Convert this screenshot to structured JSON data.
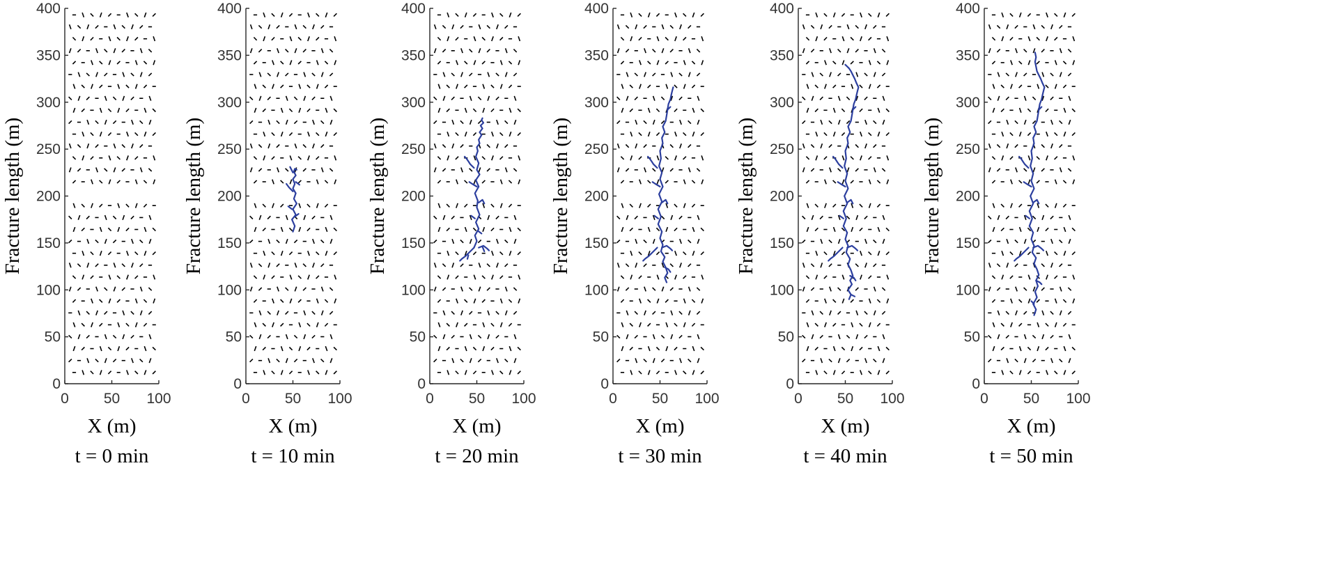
{
  "colors": {
    "natural_fracture": "#000000",
    "hydraulic_fracture": "#2b3e9e",
    "axis": "#262626"
  },
  "chart_data": [
    {
      "type": "scatter",
      "panel_label": "t = 0 min",
      "xlabel": "X (m)",
      "ylabel": "Fracture length (m)",
      "xlim": [
        0,
        100
      ],
      "ylim": [
        0,
        400
      ],
      "xticks": [
        "0",
        "50",
        "100"
      ],
      "yticks": [
        "0",
        "50",
        "100",
        "150",
        "200",
        "250",
        "300",
        "350",
        "400"
      ],
      "natural_fractures": {
        "x_range": [
          10,
          95
        ],
        "y_range": [
          12,
          393
        ],
        "rows": 31,
        "columns": 10,
        "segment_length_m": 3.5,
        "gap_y_range": [
          198,
          205
        ]
      },
      "hydraulic_fracture": []
    },
    {
      "type": "scatter",
      "panel_label": "t = 10 min",
      "xlabel": "X (m)",
      "ylabel": "Fracture length (m)",
      "xlim": [
        0,
        100
      ],
      "ylim": [
        0,
        400
      ],
      "xticks": [
        "0",
        "50",
        "100"
      ],
      "yticks": [
        "0",
        "50",
        "100",
        "150",
        "200",
        "250",
        "300",
        "350",
        "400"
      ],
      "natural_fractures": {
        "x_range": [
          10,
          95
        ],
        "y_range": [
          12,
          393
        ],
        "rows": 31,
        "columns": 10,
        "segment_length_m": 3.5,
        "gap_y_range": [
          198,
          205
        ]
      },
      "hydraulic_fracture": [
        {
          "x": [
            50,
            52,
            49,
            53,
            50,
            54,
            51,
            53,
            50,
            52,
            50,
            53,
            51,
            52,
            54
          ],
          "y": [
            162,
            168,
            175,
            180,
            186,
            192,
            197,
            203,
            208,
            213,
            218,
            222,
            226,
            229,
            228
          ]
        },
        {
          "x": [
            50,
            46,
            43
          ],
          "y": [
            205,
            209,
            213
          ]
        },
        {
          "x": [
            53,
            57
          ],
          "y": [
            215,
            212
          ]
        },
        {
          "x": [
            49,
            45
          ],
          "y": [
            186,
            189
          ]
        },
        {
          "x": [
            52,
            56
          ],
          "y": [
            178,
            181
          ]
        },
        {
          "x": [
            50,
            47
          ],
          "y": [
            225,
            231
          ]
        }
      ]
    },
    {
      "type": "scatter",
      "panel_label": "t = 20 min",
      "xlabel": "X (m)",
      "ylabel": "Fracture length (m)",
      "xlim": [
        0,
        100
      ],
      "ylim": [
        0,
        400
      ],
      "xticks": [
        "0",
        "50",
        "100"
      ],
      "yticks": [
        "0",
        "50",
        "100",
        "150",
        "200",
        "250",
        "300",
        "350",
        "400"
      ],
      "natural_fractures": {
        "x_range": [
          10,
          95
        ],
        "y_range": [
          12,
          393
        ],
        "rows": 31,
        "columns": 10,
        "segment_length_m": 3.5,
        "gap_y_range": [
          198,
          205
        ]
      },
      "hydraulic_fracture": [
        {
          "x": [
            47,
            50,
            48,
            52,
            49,
            53,
            50,
            51,
            48,
            52,
            49,
            53,
            50,
            52,
            49,
            51,
            50,
            53,
            52,
            55,
            53,
            56,
            54,
            57,
            55,
            56
          ],
          "y": [
            145,
            152,
            158,
            165,
            172,
            180,
            188,
            195,
            203,
            210,
            217,
            223,
            228,
            235,
            242,
            248,
            252,
            256,
            260,
            265,
            268,
            272,
            275,
            278,
            281,
            283
          ]
        },
        {
          "x": [
            47,
            42,
            38,
            34,
            32
          ],
          "y": [
            145,
            140,
            136,
            133,
            131
          ]
        },
        {
          "x": [
            52,
            57,
            61,
            63
          ],
          "y": [
            145,
            147,
            144,
            142
          ]
        },
        {
          "x": [
            47,
            43,
            41,
            39,
            37
          ],
          "y": [
            230,
            234,
            237,
            240,
            242
          ]
        },
        {
          "x": [
            50,
            45,
            42
          ],
          "y": [
            210,
            213,
            215
          ]
        },
        {
          "x": [
            52,
            56,
            58
          ],
          "y": [
            193,
            196,
            192
          ]
        },
        {
          "x": [
            48,
            44
          ],
          "y": [
            176,
            179
          ]
        },
        {
          "x": [
            51,
            55
          ],
          "y": [
            163,
            160
          ]
        },
        {
          "x": [
            41,
            40
          ],
          "y": [
            137,
            133
          ]
        },
        {
          "x": [
            56,
            58
          ],
          "y": [
            146,
            141
          ]
        }
      ]
    },
    {
      "type": "scatter",
      "panel_label": "t = 30 min",
      "xlabel": "X (m)",
      "ylabel": "Fracture length (m)",
      "xlim": [
        0,
        100
      ],
      "ylim": [
        0,
        400
      ],
      "xticks": [
        "0",
        "50",
        "100"
      ],
      "yticks": [
        "0",
        "50",
        "100",
        "150",
        "200",
        "250",
        "300",
        "350",
        "400"
      ],
      "natural_fractures": {
        "x_range": [
          10,
          95
        ],
        "y_range": [
          12,
          393
        ],
        "rows": 31,
        "columns": 10,
        "segment_length_m": 3.5,
        "gap_y_range": [
          198,
          205
        ]
      },
      "hydraulic_fracture": [
        {
          "x": [
            57,
            55,
            58,
            56,
            53,
            55,
            51,
            53,
            50,
            52,
            48,
            51,
            48,
            52,
            49,
            53,
            50,
            52,
            49,
            51,
            50,
            53,
            52,
            55,
            53,
            56,
            57,
            58,
            59,
            61,
            62,
            63,
            64
          ],
          "y": [
            108,
            113,
            118,
            124,
            130,
            135,
            141,
            148,
            155,
            162,
            170,
            178,
            186,
            194,
            202,
            210,
            218,
            225,
            232,
            240,
            248,
            256,
            262,
            268,
            274,
            280,
            286,
            292,
            298,
            303,
            308,
            312,
            316
          ]
        },
        {
          "x": [
            47,
            42,
            38,
            34,
            32
          ],
          "y": [
            145,
            140,
            136,
            133,
            131
          ]
        },
        {
          "x": [
            52,
            57,
            61,
            63
          ],
          "y": [
            145,
            147,
            144,
            142
          ]
        },
        {
          "x": [
            47,
            43,
            41,
            39,
            37
          ],
          "y": [
            230,
            234,
            237,
            240,
            242
          ]
        },
        {
          "x": [
            50,
            45,
            42
          ],
          "y": [
            210,
            213,
            215
          ]
        },
        {
          "x": [
            52,
            56,
            58
          ],
          "y": [
            193,
            196,
            192
          ]
        },
        {
          "x": [
            48,
            44
          ],
          "y": [
            176,
            179
          ]
        },
        {
          "x": [
            55,
            59,
            61
          ],
          "y": [
            124,
            122,
            119
          ]
        },
        {
          "x": [
            58,
            61
          ],
          "y": [
            292,
            295
          ]
        }
      ]
    },
    {
      "type": "scatter",
      "panel_label": "t = 40 min",
      "xlabel": "X (m)",
      "ylabel": "Fracture length (m)",
      "xlim": [
        0,
        100
      ],
      "ylim": [
        0,
        400
      ],
      "xticks": [
        "0",
        "50",
        "100"
      ],
      "yticks": [
        "0",
        "50",
        "100",
        "150",
        "200",
        "250",
        "300",
        "350",
        "400"
      ],
      "natural_fractures": {
        "x_range": [
          10,
          95
        ],
        "y_range": [
          12,
          393
        ],
        "rows": 31,
        "columns": 10,
        "segment_length_m": 3.5,
        "gap_y_range": [
          198,
          205
        ]
      },
      "hydraulic_fracture": [
        {
          "x": [
            54,
            56,
            53,
            57,
            55,
            58,
            56,
            53,
            55,
            51,
            53,
            50,
            52,
            48,
            51,
            48,
            52,
            49,
            53,
            50,
            52,
            49,
            51,
            50,
            53,
            52,
            55,
            53,
            56,
            57,
            58,
            59,
            61,
            62,
            63,
            64,
            62,
            60,
            58,
            56,
            54,
            52,
            50
          ],
          "y": [
            90,
            95,
            100,
            106,
            110,
            115,
            121,
            127,
            133,
            140,
            147,
            154,
            161,
            168,
            176,
            184,
            192,
            200,
            208,
            216,
            224,
            232,
            240,
            248,
            256,
            262,
            268,
            274,
            280,
            286,
            292,
            298,
            303,
            308,
            312,
            316,
            320,
            325,
            329,
            333,
            336,
            338,
            340
          ]
        },
        {
          "x": [
            47,
            42,
            38,
            34,
            32
          ],
          "y": [
            145,
            140,
            136,
            133,
            131
          ]
        },
        {
          "x": [
            52,
            57,
            61,
            63
          ],
          "y": [
            145,
            147,
            144,
            142
          ]
        },
        {
          "x": [
            47,
            43,
            41,
            39,
            37
          ],
          "y": [
            230,
            234,
            237,
            240,
            242
          ]
        },
        {
          "x": [
            50,
            45,
            42
          ],
          "y": [
            210,
            213,
            215
          ]
        },
        {
          "x": [
            52,
            56,
            58
          ],
          "y": [
            193,
            196,
            192
          ]
        },
        {
          "x": [
            48,
            44
          ],
          "y": [
            176,
            179
          ]
        },
        {
          "x": [
            55,
            59,
            61
          ],
          "y": [
            115,
            113,
            110
          ]
        },
        {
          "x": [
            58,
            61
          ],
          "y": [
            292,
            295
          ]
        },
        {
          "x": [
            56,
            60
          ],
          "y": [
            95,
            93
          ]
        }
      ]
    },
    {
      "type": "scatter",
      "panel_label": "t = 50 min",
      "xlabel": "X (m)",
      "ylabel": "Fracture length (m)",
      "xlim": [
        0,
        100
      ],
      "ylim": [
        0,
        400
      ],
      "xticks": [
        "0",
        "50",
        "100"
      ],
      "yticks": [
        "0",
        "50",
        "100",
        "150",
        "200",
        "250",
        "300",
        "350",
        "400"
      ],
      "natural_fractures": {
        "x_range": [
          10,
          95
        ],
        "y_range": [
          12,
          393
        ],
        "rows": 31,
        "columns": 10,
        "segment_length_m": 3.5,
        "gap_y_range": [
          198,
          205
        ]
      },
      "hydraulic_fracture": [
        {
          "x": [
            53,
            55,
            52,
            56,
            54,
            57,
            55,
            58,
            56,
            53,
            55,
            51,
            53,
            50,
            52,
            48,
            51,
            48,
            52,
            49,
            53,
            50,
            52,
            49,
            51,
            50,
            53,
            52,
            55,
            53,
            56,
            57,
            58,
            59,
            61,
            62,
            63,
            64,
            62,
            60,
            58,
            56,
            55,
            54,
            55,
            54
          ],
          "y": [
            73,
            79,
            85,
            92,
            98,
            104,
            110,
            116,
            122,
            128,
            134,
            140,
            147,
            154,
            161,
            168,
            176,
            184,
            192,
            200,
            208,
            216,
            224,
            232,
            240,
            248,
            256,
            262,
            268,
            274,
            280,
            286,
            292,
            298,
            303,
            308,
            312,
            316,
            320,
            325,
            329,
            333,
            338,
            343,
            348,
            353
          ]
        },
        {
          "x": [
            47,
            42,
            38,
            34,
            32
          ],
          "y": [
            145,
            140,
            136,
            133,
            131
          ]
        },
        {
          "x": [
            52,
            57,
            61,
            63
          ],
          "y": [
            145,
            147,
            144,
            142
          ]
        },
        {
          "x": [
            47,
            43,
            41,
            39,
            37
          ],
          "y": [
            230,
            234,
            237,
            240,
            242
          ]
        },
        {
          "x": [
            50,
            45,
            42
          ],
          "y": [
            210,
            213,
            215
          ]
        },
        {
          "x": [
            52,
            56,
            58
          ],
          "y": [
            193,
            196,
            192
          ]
        },
        {
          "x": [
            48,
            44
          ],
          "y": [
            176,
            179
          ]
        },
        {
          "x": [
            55,
            59,
            61
          ],
          "y": [
            110,
            108,
            106
          ]
        },
        {
          "x": [
            58,
            61
          ],
          "y": [
            292,
            295
          ]
        },
        {
          "x": [
            53,
            50
          ],
          "y": [
            85,
            88
          ]
        }
      ]
    }
  ]
}
